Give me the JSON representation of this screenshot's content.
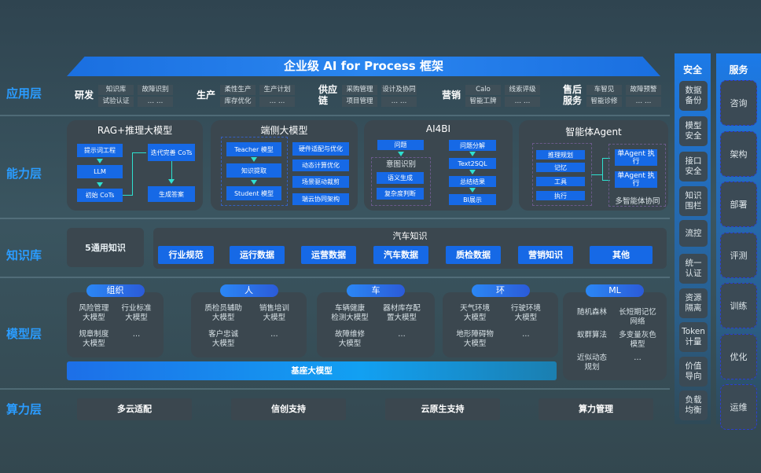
{
  "title": "企业级 AI for Process 框架",
  "layers": {
    "app": "应用层",
    "ability": "能力层",
    "knowledge": "知识库",
    "model": "模型层",
    "compute": "算力层"
  },
  "app_groups": [
    {
      "name": "研发",
      "items": [
        "知识库",
        "故障识别",
        "试验认证",
        "… …"
      ]
    },
    {
      "name": "生产",
      "items": [
        "柔性生产",
        "生产计划",
        "库存优化",
        "… …"
      ]
    },
    {
      "name": "供应链",
      "items": [
        "采购管理",
        "设计及协同",
        "项目管理",
        "… …"
      ]
    },
    {
      "name": "营销",
      "items": [
        "Calo",
        "线索评级",
        "智能工牌",
        "… …"
      ]
    },
    {
      "name": "售后服务",
      "items": [
        "车智见",
        "故障预警",
        "智能诊修",
        "… …"
      ]
    }
  ],
  "ability": {
    "rag": {
      "title": "RAG+推理大模型",
      "steps": [
        "提示词工程",
        "LLM",
        "初始 CoTs",
        "迭代完善 CoTs",
        "生成答案"
      ]
    },
    "edge": {
      "title": "端侧大模型",
      "steps": [
        "Teacher 模型",
        "知识提取",
        "Student 模型"
      ],
      "features": [
        "硬件适配与优化",
        "动态计算优化",
        "场景驱动裁剪",
        "端云协同架构"
      ]
    },
    "ai4bi": {
      "title": "AI4BI",
      "question": "问题",
      "intent": "意图识别",
      "intent_items": [
        "语义生成",
        "复杂度判断"
      ],
      "pipeline": [
        "问题分解",
        "Text2SQL",
        "总结结果",
        "BI展示"
      ]
    },
    "agent": {
      "title": "智能体Agent",
      "modules": [
        "推理规划",
        "记忆",
        "工具",
        "执行"
      ],
      "exec": [
        "单Agent 执行",
        "单Agent 执行"
      ],
      "multi": "多智能体协同"
    }
  },
  "knowledge": {
    "general": "5通用知识",
    "auto_title": "汽车知识",
    "auto_items": [
      "行业规范",
      "运行数据",
      "运营数据",
      "汽车数据",
      "质检数据",
      "营销知识",
      "其他"
    ]
  },
  "model_groups": [
    {
      "name": "组织",
      "items": [
        "风险管理 大模型",
        "行业标准 大模型",
        "规章制度 大模型",
        "…"
      ]
    },
    {
      "name": "人",
      "items": [
        "质检员辅助 大模型",
        "销售培训 大模型",
        "客户忠诚 大模型",
        "…"
      ]
    },
    {
      "name": "车",
      "items": [
        "车辆健康 检测大模型",
        "器材库存配 置大模型",
        "故障维修 大模型",
        "…"
      ]
    },
    {
      "name": "环",
      "items": [
        "天气环境 大模型",
        "行驶环境 大模型",
        "地形障碍物 大模型",
        "…"
      ]
    },
    {
      "name": "ML",
      "items": [
        "随机森林",
        "长短期记忆 网络",
        "蚁群算法",
        "多变量灰色 模型",
        "近似动态 规划",
        "…"
      ]
    }
  ],
  "base_model": "基座大模型",
  "compute": [
    "多云适配",
    "信创支持",
    "云原生支持",
    "算力管理"
  ],
  "security": {
    "title": "安全",
    "items": [
      "数据 备份",
      "模型 安全",
      "接口 安全",
      "知识 围栏",
      "流控",
      "统一 认证",
      "资源 隔离",
      "Token 计量",
      "价值 导向",
      "负载 均衡"
    ]
  },
  "service": {
    "title": "服务",
    "items": [
      "咨询",
      "架构",
      "部署",
      "评测",
      "训练",
      "优化",
      "运维"
    ]
  }
}
